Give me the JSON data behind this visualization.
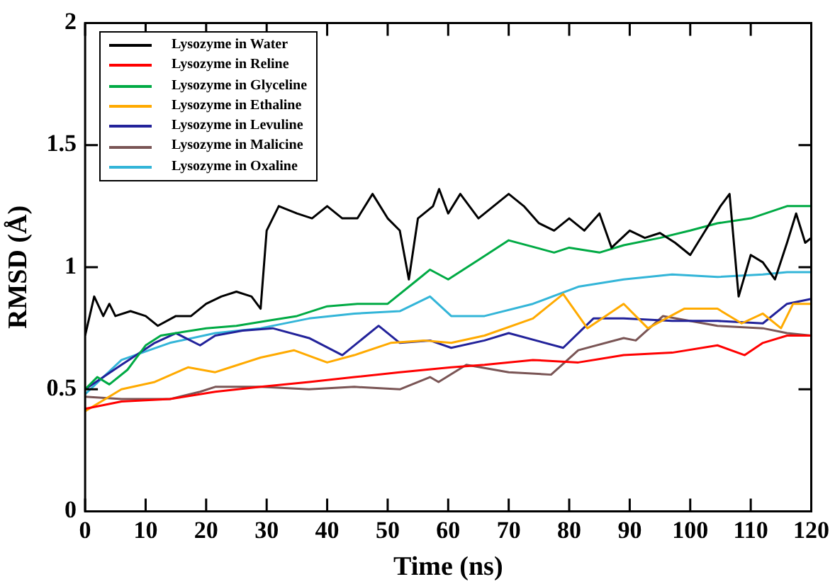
{
  "chart_data": {
    "type": "line",
    "xlabel": "Time (ns)",
    "ylabel": "RMSD (Å)",
    "xlim": [
      0,
      120
    ],
    "ylim": [
      0,
      2
    ],
    "xticks": [
      0,
      10,
      20,
      30,
      40,
      50,
      60,
      70,
      80,
      90,
      100,
      110,
      120
    ],
    "yticks": [
      0,
      0.5,
      1,
      1.5,
      2
    ],
    "grid": false,
    "legend": "top left",
    "marker": "none",
    "line_style": "solid",
    "series": [
      {
        "name": "Lysozyme in Water",
        "color": "#000000",
        "x": [
          0,
          1.5,
          3,
          4,
          5,
          7.5,
          10,
          12,
          15,
          17.5,
          20,
          22.5,
          25,
          27.5,
          29,
          30,
          32,
          35,
          37.5,
          40,
          42.5,
          45,
          47.5,
          50,
          52,
          53.5,
          55,
          57.5,
          58.5,
          60,
          62,
          65,
          67.5,
          70,
          72.5,
          75,
          77.5,
          80,
          82.5,
          85,
          87,
          90,
          92.5,
          95,
          97.5,
          100,
          102.5,
          105,
          106.5,
          108,
          110,
          112,
          114,
          116,
          117.5,
          119,
          120
        ],
        "values": [
          0.72,
          0.88,
          0.8,
          0.85,
          0.8,
          0.82,
          0.8,
          0.76,
          0.8,
          0.8,
          0.85,
          0.88,
          0.9,
          0.88,
          0.83,
          1.15,
          1.25,
          1.22,
          1.2,
          1.25,
          1.2,
          1.2,
          1.3,
          1.2,
          1.15,
          0.95,
          1.2,
          1.25,
          1.32,
          1.22,
          1.3,
          1.2,
          1.25,
          1.3,
          1.25,
          1.18,
          1.15,
          1.2,
          1.15,
          1.22,
          1.08,
          1.15,
          1.12,
          1.14,
          1.1,
          1.05,
          1.15,
          1.25,
          1.3,
          0.88,
          1.05,
          1.02,
          0.95,
          1.1,
          1.22,
          1.1,
          1.12
        ]
      },
      {
        "name": "Lysozyme in Reline",
        "color": "#ff0000",
        "x": [
          0,
          6,
          14,
          21.5,
          29,
          37,
          44.5,
          52,
          60.5,
          66,
          74,
          81.5,
          89,
          97,
          104.5,
          109,
          112,
          116,
          120
        ],
        "values": [
          0.42,
          0.45,
          0.46,
          0.49,
          0.51,
          0.53,
          0.55,
          0.57,
          0.59,
          0.6,
          0.62,
          0.61,
          0.64,
          0.65,
          0.68,
          0.64,
          0.69,
          0.72,
          0.72
        ]
      },
      {
        "name": "Lysozyme in Glyceline",
        "color": "#00aa44",
        "x": [
          0,
          2,
          4,
          7,
          10,
          12.5,
          15,
          20,
          25,
          30,
          35,
          40,
          45,
          50,
          55,
          57,
          60,
          65,
          70,
          77.5,
          80,
          85,
          89,
          95,
          100,
          104.5,
          110,
          116,
          120
        ],
        "values": [
          0.5,
          0.55,
          0.52,
          0.58,
          0.68,
          0.72,
          0.73,
          0.75,
          0.76,
          0.78,
          0.8,
          0.84,
          0.85,
          0.85,
          0.95,
          0.99,
          0.95,
          1.03,
          1.11,
          1.06,
          1.08,
          1.06,
          1.09,
          1.12,
          1.15,
          1.18,
          1.2,
          1.25,
          1.25
        ]
      },
      {
        "name": "Lysozyme in Ethaline",
        "color": "#ffaa00",
        "x": [
          0,
          6,
          11.5,
          17,
          21.5,
          24,
          29,
          34.5,
          40,
          44.5,
          50.5,
          56,
          60.5,
          66,
          74,
          79,
          83,
          89,
          93,
          99,
          104.5,
          108.5,
          112,
          115,
          117,
          120
        ],
        "values": [
          0.41,
          0.5,
          0.53,
          0.59,
          0.57,
          0.59,
          0.63,
          0.66,
          0.61,
          0.64,
          0.69,
          0.7,
          0.69,
          0.72,
          0.79,
          0.89,
          0.75,
          0.85,
          0.75,
          0.83,
          0.83,
          0.77,
          0.81,
          0.75,
          0.85,
          0.85
        ]
      },
      {
        "name": "Lysozyme in Levuline",
        "color": "#22229a",
        "x": [
          0,
          6,
          11.5,
          15,
          19,
          21.5,
          26,
          31,
          37,
          42.5,
          48.5,
          52,
          57,
          60.5,
          66,
          70,
          79,
          84,
          89,
          97,
          104.5,
          112,
          116,
          120
        ],
        "values": [
          0.5,
          0.6,
          0.69,
          0.73,
          0.68,
          0.72,
          0.74,
          0.75,
          0.71,
          0.64,
          0.76,
          0.69,
          0.7,
          0.67,
          0.7,
          0.73,
          0.67,
          0.79,
          0.79,
          0.78,
          0.78,
          0.77,
          0.85,
          0.87
        ]
      },
      {
        "name": "Lysozyme in Malicine",
        "color": "#7a5555",
        "x": [
          0,
          6,
          14,
          19,
          21.5,
          29,
          37,
          44.5,
          52,
          57,
          58.4,
          63,
          70,
          77,
          81.5,
          89,
          91,
          95.5,
          104.5,
          112,
          116,
          120
        ],
        "values": [
          0.47,
          0.46,
          0.46,
          0.49,
          0.51,
          0.51,
          0.5,
          0.51,
          0.5,
          0.55,
          0.53,
          0.6,
          0.57,
          0.56,
          0.66,
          0.71,
          0.7,
          0.8,
          0.76,
          0.75,
          0.73,
          0.72
        ]
      },
      {
        "name": "Lysozyme in Oxaline",
        "color": "#33b5d8",
        "x": [
          0,
          6,
          14,
          21.5,
          29,
          37,
          44.5,
          52,
          57,
          60.5,
          66,
          74,
          81.5,
          89,
          97,
          104.5,
          112,
          116,
          120
        ],
        "values": [
          0.48,
          0.62,
          0.69,
          0.73,
          0.75,
          0.79,
          0.81,
          0.82,
          0.88,
          0.8,
          0.8,
          0.85,
          0.92,
          0.95,
          0.97,
          0.96,
          0.97,
          0.98,
          0.98
        ]
      }
    ]
  }
}
